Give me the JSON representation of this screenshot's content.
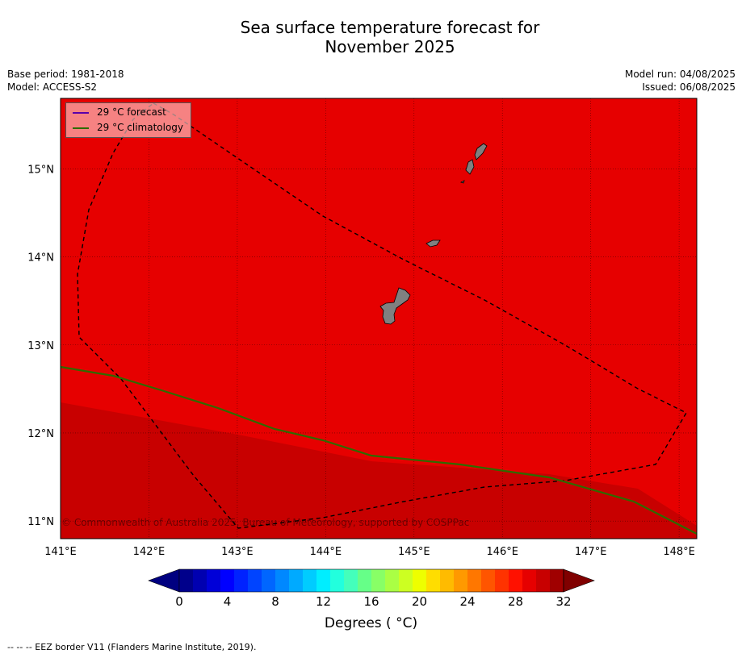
{
  "title": {
    "line1": "Sea surface temperature forecast for",
    "line2": "November 2025"
  },
  "meta": {
    "base_period": "Base period: 1981-2018",
    "model": "Model: ACCESS-S2",
    "model_run": "Model run: 04/08/2025",
    "issued": "Issued: 06/08/2025"
  },
  "map": {
    "lon_range": [
      141.0,
      148.2
    ],
    "lat_range": [
      10.8,
      15.8
    ],
    "lon_ticks": [
      "141°E",
      "142°E",
      "143°E",
      "144°E",
      "145°E",
      "146°E",
      "147°E",
      "148°E"
    ],
    "lat_ticks": [
      "11°N",
      "12°N",
      "13°N",
      "14°N",
      "15°N"
    ],
    "background_color": "#e60000",
    "warm_region_color": "#c80000",
    "land_color": "#808080",
    "copyright": "© Commonwealth of Australia 2025, Bureau of Meteorology, supported by COSPPac"
  },
  "legend": {
    "forecast_label": "29 °C  forecast",
    "forecast_color": "#5a00aa",
    "climatology_label": "29 °C  climatology",
    "climatology_color": "#2e6b00"
  },
  "colorbar": {
    "tick_labels": [
      "0",
      "4",
      "8",
      "12",
      "16",
      "20",
      "24",
      "28",
      "32"
    ],
    "title": "Degrees ( °C)"
  },
  "footer": "--  --  -- EEZ border V11 (Flanders Marine Institute, 2019)."
}
